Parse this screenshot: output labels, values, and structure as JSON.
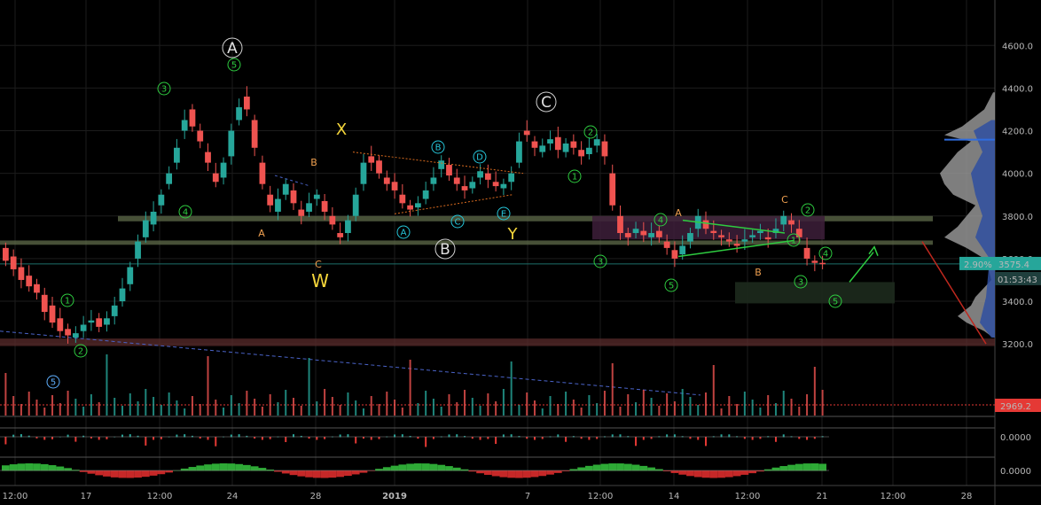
{
  "chart_data": {
    "type": "candlestick",
    "symbol_currency_hint": "",
    "ylim": [
      3130,
      4730
    ],
    "y_ticks": [
      4600,
      4400,
      4200,
      4000,
      3800,
      3600,
      3400,
      3200
    ],
    "y_tick_labels": [
      "4600.0",
      "4400.0",
      "4200.0",
      "4000.0",
      "3800.0",
      "3600.0",
      "3400.0",
      "3200.0"
    ],
    "x_ticks": [
      "12:00",
      "17",
      "12:00",
      "24",
      "28",
      "2019",
      "7",
      "12:00",
      "14",
      "12:00",
      "21",
      "12:00",
      "28"
    ],
    "last_price": "3575.4",
    "last_price_change": "2.90%",
    "countdown": "01:53:43",
    "volume_ma_label": "2969.2",
    "osc1_zero": "0.0000",
    "osc2_zero": "0.0000",
    "price_path": [
      [
        3650,
        3590
      ],
      [
        3610,
        3550
      ],
      [
        3560,
        3500
      ],
      [
        3520,
        3470
      ],
      [
        3480,
        3440
      ],
      [
        3430,
        3350
      ],
      [
        3380,
        3300
      ],
      [
        3320,
        3260
      ],
      [
        3270,
        3240
      ],
      [
        3230,
        3250
      ],
      [
        3260,
        3290
      ],
      [
        3300,
        3310
      ],
      [
        3320,
        3280
      ],
      [
        3290,
        3320
      ],
      [
        3330,
        3380
      ],
      [
        3400,
        3460
      ],
      [
        3480,
        3560
      ],
      [
        3600,
        3680
      ],
      [
        3700,
        3780
      ],
      [
        3760,
        3820
      ],
      [
        3850,
        3900
      ],
      [
        3950,
        4000
      ],
      [
        4050,
        4120
      ],
      [
        4200,
        4250
      ],
      [
        4300,
        4220
      ],
      [
        4200,
        4150
      ],
      [
        4100,
        4050
      ],
      [
        4000,
        3960
      ],
      [
        3980,
        4050
      ],
      [
        4080,
        4200
      ],
      [
        4250,
        4310
      ],
      [
        4360,
        4300
      ],
      [
        4250,
        4120
      ],
      [
        4050,
        3950
      ],
      [
        3900,
        3850
      ],
      [
        3820,
        3880
      ],
      [
        3900,
        3950
      ],
      [
        3920,
        3860
      ],
      [
        3830,
        3800
      ],
      [
        3820,
        3860
      ],
      [
        3880,
        3900
      ],
      [
        3870,
        3820
      ],
      [
        3800,
        3760
      ],
      [
        3720,
        3700
      ],
      [
        3720,
        3780
      ],
      [
        3800,
        3900
      ],
      [
        3950,
        4050
      ],
      [
        4080,
        4050
      ],
      [
        4060,
        4000
      ],
      [
        3980,
        3950
      ],
      [
        3960,
        3920
      ],
      [
        3900,
        3860
      ],
      [
        3850,
        3830
      ],
      [
        3840,
        3860
      ],
      [
        3880,
        3920
      ],
      [
        3950,
        3980
      ],
      [
        4020,
        4060
      ],
      [
        4040,
        3990
      ],
      [
        3980,
        3950
      ],
      [
        3940,
        3920
      ],
      [
        3930,
        3960
      ],
      [
        3980,
        4010
      ],
      [
        4000,
        3970
      ],
      [
        3960,
        3940
      ],
      [
        3930,
        3950
      ],
      [
        3960,
        4000
      ],
      [
        4050,
        4150
      ],
      [
        4200,
        4180
      ],
      [
        4150,
        4120
      ],
      [
        4100,
        4130
      ],
      [
        4140,
        4160
      ],
      [
        4170,
        4110
      ],
      [
        4100,
        4140
      ],
      [
        4150,
        4120
      ],
      [
        4110,
        4080
      ],
      [
        4090,
        4120
      ],
      [
        4130,
        4160
      ],
      [
        4150,
        4080
      ],
      [
        4000,
        3850
      ],
      [
        3800,
        3720
      ],
      [
        3720,
        3700
      ],
      [
        3720,
        3740
      ],
      [
        3730,
        3710
      ],
      [
        3700,
        3720
      ],
      [
        3730,
        3700
      ],
      [
        3680,
        3650
      ],
      [
        3640,
        3600
      ],
      [
        3620,
        3660
      ],
      [
        3680,
        3720
      ],
      [
        3740,
        3800
      ],
      [
        3780,
        3740
      ],
      [
        3730,
        3720
      ],
      [
        3710,
        3700
      ],
      [
        3690,
        3680
      ],
      [
        3670,
        3660
      ],
      [
        3680,
        3690
      ],
      [
        3700,
        3710
      ],
      [
        3720,
        3730
      ],
      [
        3700,
        3690
      ],
      [
        3720,
        3740
      ],
      [
        3760,
        3800
      ],
      [
        3780,
        3760
      ],
      [
        3740,
        3700
      ],
      [
        3650,
        3600
      ],
      [
        3590,
        3580
      ],
      [
        3580,
        3575
      ]
    ],
    "price_path_units": "open/close pairs, first at x 0, last at the 21 mark",
    "levels": [
      {
        "name": "upper-zone",
        "from": 3775,
        "to": 3800,
        "color": "#5f6b4a"
      },
      {
        "name": "lower-zone",
        "from": 3665,
        "to": 3685,
        "color": "#5f6b4a"
      },
      {
        "name": "support-zone",
        "from": 3190,
        "to": 3225,
        "color": "#5a2b2b"
      }
    ],
    "wave_labels_circled": [
      {
        "text": "1",
        "color": "#2ecc40"
      },
      {
        "text": "2",
        "color": "#2ecc40"
      },
      {
        "text": "3",
        "color": "#2ecc40"
      },
      {
        "text": "4",
        "color": "#2ecc40"
      },
      {
        "text": "5",
        "color": "#2ecc40"
      },
      {
        "text": "5",
        "color": "#5fb0ff"
      },
      {
        "text": "A",
        "color": "#26c6da"
      },
      {
        "text": "B",
        "color": "#26c6da"
      },
      {
        "text": "C",
        "color": "#26c6da"
      },
      {
        "text": "D",
        "color": "#26c6da"
      },
      {
        "text": "E",
        "color": "#26c6da"
      },
      {
        "text": "1",
        "color": "#2ecc40"
      },
      {
        "text": "2",
        "color": "#2ecc40"
      },
      {
        "text": "3",
        "color": "#2ecc40"
      },
      {
        "text": "4",
        "color": "#2ecc40"
      },
      {
        "text": "5",
        "color": "#2ecc40"
      },
      {
        "text": "1",
        "color": "#2ecc40"
      },
      {
        "text": "2",
        "color": "#2ecc40"
      },
      {
        "text": "3",
        "color": "#2ecc40"
      },
      {
        "text": "4",
        "color": "#2ecc40"
      },
      {
        "text": "5",
        "color": "#2ecc40"
      }
    ],
    "wave_labels_big": [
      {
        "text": "A"
      },
      {
        "text": "B"
      },
      {
        "text": "C"
      }
    ],
    "wave_labels_plain": [
      {
        "text": "W",
        "color": "#f5d63b"
      },
      {
        "text": "X",
        "color": "#f5d63b"
      },
      {
        "text": "Y",
        "color": "#f5d63b"
      },
      {
        "text": "A",
        "color": "#f0a050"
      },
      {
        "text": "B",
        "color": "#f0a050"
      },
      {
        "text": "C",
        "color": "#f0a050"
      },
      {
        "text": "A",
        "color": "#f0a050"
      },
      {
        "text": "B",
        "color": "#f0a050"
      },
      {
        "text": "C",
        "color": "#f0a050"
      }
    ],
    "colors": {
      "up": "#26a69a",
      "down": "#ef5350",
      "grid": "#1c1c1c",
      "axis_text": "#b8b8b8",
      "price_tag": "#26a69a",
      "volume_tag": "#e53935",
      "fib_zone": "#3d1f3a"
    }
  }
}
